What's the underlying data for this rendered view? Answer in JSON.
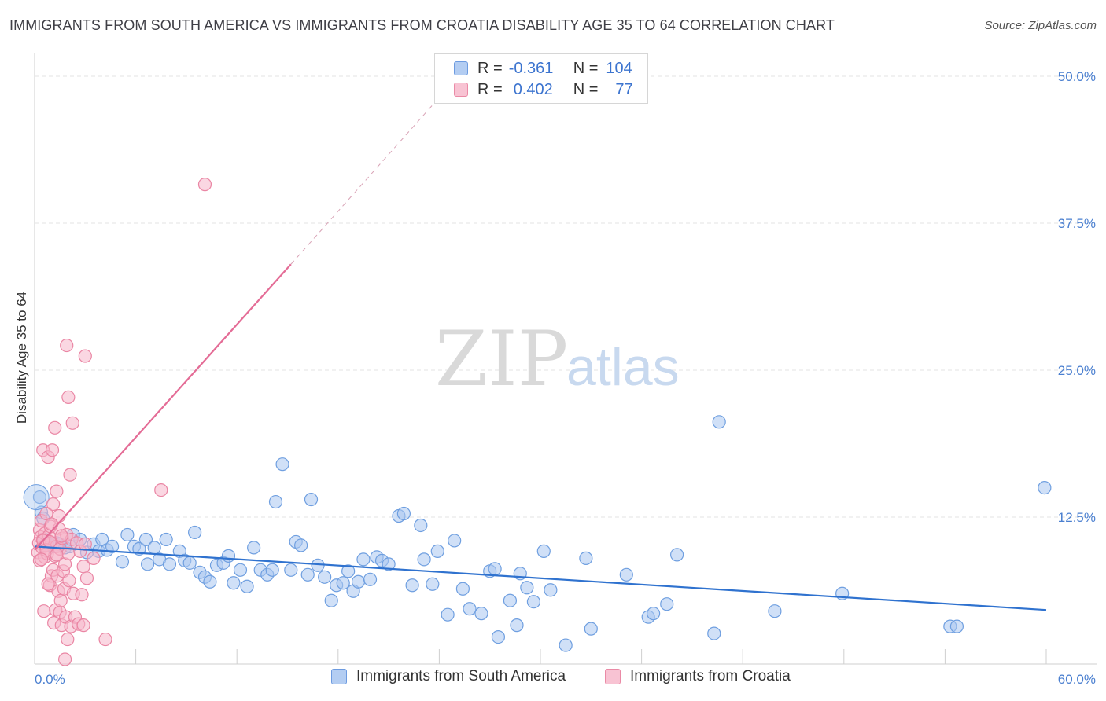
{
  "title": "IMMIGRANTS FROM SOUTH AMERICA VS IMMIGRANTS FROM CROATIA DISABILITY AGE 35 TO 64 CORRELATION CHART",
  "source": "Source: ZipAtlas.com",
  "watermark": {
    "zip": "ZIP",
    "atlas": "atlas"
  },
  "stats": {
    "row1": {
      "r_label": "R =",
      "r_value": "-0.361",
      "n_label": "N =",
      "n_value": "104"
    },
    "row2": {
      "r_label": "R =",
      "r_value": "0.402",
      "n_label": "N =",
      "n_value": "77"
    }
  },
  "legend": {
    "south_america": "Immigrants from South America",
    "croatia": "Immigrants from Croatia"
  },
  "colors": {
    "blue_fill": "#a9c7f0",
    "blue_stroke": "#6f9fe0",
    "blue_line": "#2f72cf",
    "pink_fill": "#f6b7ca",
    "pink_stroke": "#ea86a4",
    "pink_line": "#e46c96",
    "tick": "#4a7fd0",
    "grid": "#e3e3e3"
  },
  "chart_data": {
    "type": "scatter",
    "ylabel": "Disability Age 35 to 64",
    "xlim": [
      0,
      60
    ],
    "ylim": [
      0,
      50
    ],
    "x_ticks": [
      "0.0%",
      "60.0%"
    ],
    "y_ticks": [
      "12.5%",
      "25.0%",
      "37.5%",
      "50.0%"
    ],
    "y_tick_values": [
      12.5,
      25.0,
      37.5,
      50.0
    ],
    "grid": true,
    "legend_position": "bottom",
    "series": [
      {
        "name": "Immigrants from South America",
        "color": "#a9c7f0",
        "trend": {
          "x": [
            0,
            60
          ],
          "y": [
            10.0,
            4.6
          ]
        },
        "points": [
          [
            0.3,
            14.2
          ],
          [
            0.4,
            12.9
          ],
          [
            0.5,
            12.4
          ],
          [
            0.6,
            10.6
          ],
          [
            0.7,
            10.3
          ],
          [
            0.9,
            10.1
          ],
          [
            1.1,
            10.0
          ],
          [
            1.3,
            10.3
          ],
          [
            1.5,
            10.2
          ],
          [
            1.8,
            9.9
          ],
          [
            2.1,
            10.0
          ],
          [
            2.3,
            11.0
          ],
          [
            2.7,
            10.6
          ],
          [
            3.1,
            9.5
          ],
          [
            3.5,
            10.2
          ],
          [
            3.8,
            9.6
          ],
          [
            4.0,
            10.6
          ],
          [
            4.3,
            9.7
          ],
          [
            4.6,
            10.0
          ],
          [
            5.2,
            8.7
          ],
          [
            5.5,
            11.0
          ],
          [
            5.9,
            10.0
          ],
          [
            6.2,
            9.8
          ],
          [
            6.6,
            10.6
          ],
          [
            6.7,
            8.5
          ],
          [
            7.1,
            9.9
          ],
          [
            7.4,
            8.9
          ],
          [
            7.8,
            10.6
          ],
          [
            8.0,
            8.5
          ],
          [
            8.6,
            9.6
          ],
          [
            8.9,
            8.8
          ],
          [
            9.2,
            8.6
          ],
          [
            9.5,
            11.2
          ],
          [
            9.8,
            7.8
          ],
          [
            10.1,
            7.4
          ],
          [
            10.4,
            7.0
          ],
          [
            10.8,
            8.4
          ],
          [
            11.2,
            8.6
          ],
          [
            11.5,
            9.2
          ],
          [
            11.8,
            6.9
          ],
          [
            12.2,
            8.0
          ],
          [
            12.6,
            6.6
          ],
          [
            13.0,
            9.9
          ],
          [
            13.4,
            8.0
          ],
          [
            13.8,
            7.6
          ],
          [
            14.1,
            8.0
          ],
          [
            14.3,
            13.8
          ],
          [
            14.7,
            17.0
          ],
          [
            15.2,
            8.0
          ],
          [
            15.5,
            10.4
          ],
          [
            15.8,
            10.1
          ],
          [
            16.2,
            7.6
          ],
          [
            16.4,
            14.0
          ],
          [
            16.8,
            8.4
          ],
          [
            17.2,
            7.4
          ],
          [
            17.6,
            5.4
          ],
          [
            17.9,
            6.7
          ],
          [
            18.3,
            6.9
          ],
          [
            18.6,
            7.9
          ],
          [
            18.9,
            6.2
          ],
          [
            19.2,
            7.0
          ],
          [
            19.5,
            8.9
          ],
          [
            19.9,
            7.2
          ],
          [
            20.3,
            9.1
          ],
          [
            20.6,
            8.8
          ],
          [
            21.0,
            8.5
          ],
          [
            21.6,
            12.6
          ],
          [
            21.9,
            12.8
          ],
          [
            22.4,
            6.7
          ],
          [
            22.9,
            11.8
          ],
          [
            23.1,
            8.9
          ],
          [
            23.6,
            6.8
          ],
          [
            23.9,
            9.6
          ],
          [
            24.5,
            4.2
          ],
          [
            24.9,
            10.5
          ],
          [
            25.4,
            6.4
          ],
          [
            25.8,
            4.7
          ],
          [
            26.5,
            4.3
          ],
          [
            27.0,
            7.9
          ],
          [
            27.3,
            8.1
          ],
          [
            27.5,
            2.3
          ],
          [
            28.2,
            5.4
          ],
          [
            28.6,
            3.3
          ],
          [
            28.8,
            7.7
          ],
          [
            29.2,
            6.5
          ],
          [
            29.6,
            5.3
          ],
          [
            30.2,
            9.6
          ],
          [
            30.6,
            6.3
          ],
          [
            31.5,
            1.6
          ],
          [
            32.7,
            9.0
          ],
          [
            33.0,
            3.0
          ],
          [
            35.1,
            7.6
          ],
          [
            36.4,
            4.0
          ],
          [
            36.7,
            4.3
          ],
          [
            37.5,
            5.1
          ],
          [
            38.1,
            9.3
          ],
          [
            40.3,
            2.6
          ],
          [
            40.6,
            20.6
          ],
          [
            43.9,
            4.5
          ],
          [
            47.9,
            6.0
          ],
          [
            54.3,
            3.2
          ],
          [
            54.7,
            3.2
          ],
          [
            59.9,
            15.0
          ]
        ]
      },
      {
        "name": "Immigrants from Croatia",
        "color": "#f6b7ca",
        "trend": {
          "x": [
            0,
            15.2
          ],
          "y": [
            9.7,
            34.0
          ],
          "dashed_to": {
            "x": [
              15.2,
              24.5
            ],
            "y": [
              34.0,
              49.0
            ]
          }
        },
        "points": [
          [
            0.2,
            9.5
          ],
          [
            0.25,
            10.3
          ],
          [
            0.3,
            11.4
          ],
          [
            0.3,
            8.8
          ],
          [
            0.35,
            10.8
          ],
          [
            0.4,
            12.2
          ],
          [
            0.45,
            9.9
          ],
          [
            0.5,
            10.6
          ],
          [
            0.5,
            18.2
          ],
          [
            0.55,
            4.5
          ],
          [
            0.6,
            9.1
          ],
          [
            0.6,
            11.1
          ],
          [
            0.65,
            10.1
          ],
          [
            0.7,
            12.8
          ],
          [
            0.75,
            9.4
          ],
          [
            0.8,
            17.6
          ],
          [
            0.85,
            10.9
          ],
          [
            0.9,
            6.7
          ],
          [
            0.95,
            11.7
          ],
          [
            1.0,
            7.5
          ],
          [
            1.0,
            10.3
          ],
          [
            1.05,
            18.2
          ],
          [
            1.1,
            8.0
          ],
          [
            1.1,
            13.6
          ],
          [
            1.15,
            3.5
          ],
          [
            1.2,
            9.2
          ],
          [
            1.2,
            20.1
          ],
          [
            1.25,
            4.6
          ],
          [
            1.3,
            14.7
          ],
          [
            1.3,
            10.0
          ],
          [
            1.35,
            7.5
          ],
          [
            1.4,
            6.2
          ],
          [
            1.45,
            11.5
          ],
          [
            1.45,
            12.6
          ],
          [
            1.5,
            4.4
          ],
          [
            1.5,
            9.8
          ],
          [
            1.55,
            5.4
          ],
          [
            1.6,
            3.3
          ],
          [
            1.65,
            10.7
          ],
          [
            1.7,
            7.9
          ],
          [
            1.75,
            6.4
          ],
          [
            1.8,
            8.5
          ],
          [
            1.8,
            0.4
          ],
          [
            1.85,
            4.0
          ],
          [
            1.9,
            11.0
          ],
          [
            1.9,
            27.1
          ],
          [
            1.95,
            2.1
          ],
          [
            2.0,
            9.4
          ],
          [
            2.0,
            22.7
          ],
          [
            2.05,
            7.1
          ],
          [
            2.1,
            16.1
          ],
          [
            2.15,
            3.2
          ],
          [
            2.2,
            10.6
          ],
          [
            2.25,
            20.5
          ],
          [
            2.3,
            6.0
          ],
          [
            2.4,
            4.0
          ],
          [
            2.5,
            10.3
          ],
          [
            2.6,
            3.4
          ],
          [
            2.7,
            9.6
          ],
          [
            2.8,
            5.9
          ],
          [
            2.9,
            8.3
          ],
          [
            2.9,
            3.3
          ],
          [
            3.0,
            10.2
          ],
          [
            3.1,
            7.3
          ],
          [
            3.0,
            26.2
          ],
          [
            3.5,
            9.0
          ],
          [
            4.2,
            2.1
          ],
          [
            7.5,
            14.8
          ],
          [
            10.1,
            40.8
          ],
          [
            0.5,
            10.5
          ],
          [
            0.7,
            9.7
          ],
          [
            0.9,
            10.4
          ],
          [
            1.0,
            11.9
          ],
          [
            1.3,
            9.3
          ],
          [
            0.4,
            8.9
          ],
          [
            1.6,
            10.9
          ],
          [
            0.8,
            6.8
          ]
        ]
      }
    ]
  }
}
